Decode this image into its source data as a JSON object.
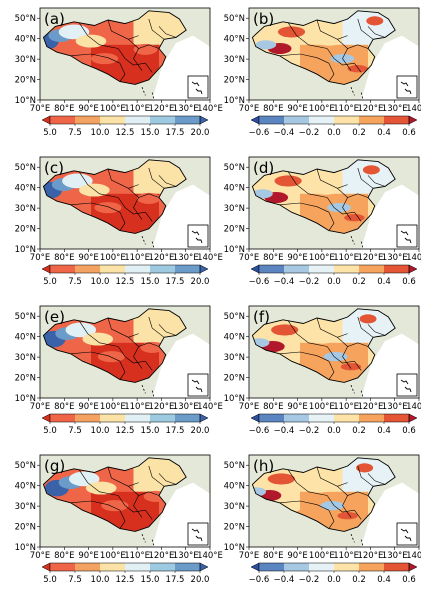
{
  "panels": [
    {
      "label": "(a)",
      "scale": "left"
    },
    {
      "label": "(b)",
      "scale": "right"
    },
    {
      "label": "(c)",
      "scale": "left"
    },
    {
      "label": "(d)",
      "scale": "right"
    },
    {
      "label": "(e)",
      "scale": "left"
    },
    {
      "label": "(f)",
      "scale": "right"
    },
    {
      "label": "(g)",
      "scale": "left"
    },
    {
      "label": "(h)",
      "scale": "right"
    }
  ],
  "axes": {
    "x_ticks": [
      "70°E",
      "80°E",
      "90°E",
      "100°E",
      "110°E",
      "120°E",
      "130°E",
      "140°E"
    ],
    "y_ticks": [
      "10°N",
      "20°N",
      "30°N",
      "40°N",
      "50°N"
    ]
  },
  "colorbars": {
    "left": {
      "ticks": [
        "5.0",
        "7.5",
        "10.0",
        "12.5",
        "15.0",
        "17.5",
        "20.0"
      ],
      "colors": [
        "#d7301f",
        "#ef6548",
        "#f4a261",
        "#fbe2a6",
        "#e0f0f4",
        "#9ecae1",
        "#6b9bc8",
        "#3a62a8"
      ]
    },
    "right": {
      "ticks": [
        "−0.6",
        "−0.4",
        "−0.2",
        "0.0",
        "0.2",
        "0.4",
        "0.6"
      ],
      "colors": [
        "#2c4f9e",
        "#5b85c1",
        "#a6c8e2",
        "#e6f2f6",
        "#fde3a8",
        "#f6a35d",
        "#e35535",
        "#b2182b"
      ]
    }
  },
  "colors": {
    "land_bg": "#e4e8d8",
    "ocean": "#ffffff",
    "border": "#000000"
  },
  "chart_data": [
    {
      "type": "heatmap",
      "panel": "(a)",
      "x_unit": "°E",
      "y_unit": "°N",
      "xlim": [
        70,
        140
      ],
      "ylim": [
        10,
        55
      ],
      "colorbar_range": [
        5.0,
        20.0
      ]
    },
    {
      "type": "heatmap",
      "panel": "(b)",
      "x_unit": "°E",
      "y_unit": "°N",
      "xlim": [
        70,
        140
      ],
      "ylim": [
        10,
        55
      ],
      "colorbar_range": [
        -0.6,
        0.6
      ]
    },
    {
      "type": "heatmap",
      "panel": "(c)",
      "x_unit": "°E",
      "y_unit": "°N",
      "xlim": [
        70,
        140
      ],
      "ylim": [
        10,
        55
      ],
      "colorbar_range": [
        5.0,
        20.0
      ]
    },
    {
      "type": "heatmap",
      "panel": "(d)",
      "x_unit": "°E",
      "y_unit": "°N",
      "xlim": [
        70,
        140
      ],
      "ylim": [
        10,
        55
      ],
      "colorbar_range": [
        -0.6,
        0.6
      ]
    },
    {
      "type": "heatmap",
      "panel": "(e)",
      "x_unit": "°E",
      "y_unit": "°N",
      "xlim": [
        70,
        140
      ],
      "ylim": [
        10,
        55
      ],
      "colorbar_range": [
        5.0,
        20.0
      ]
    },
    {
      "type": "heatmap",
      "panel": "(f)",
      "x_unit": "°E",
      "y_unit": "°N",
      "xlim": [
        70,
        140
      ],
      "ylim": [
        10,
        55
      ],
      "colorbar_range": [
        -0.6,
        0.6
      ]
    },
    {
      "type": "heatmap",
      "panel": "(g)",
      "x_unit": "°E",
      "y_unit": "°N",
      "xlim": [
        70,
        140
      ],
      "ylim": [
        10,
        55
      ],
      "colorbar_range": [
        5.0,
        20.0
      ]
    },
    {
      "type": "heatmap",
      "panel": "(h)",
      "x_unit": "°E",
      "y_unit": "°N",
      "xlim": [
        70,
        140
      ],
      "ylim": [
        10,
        55
      ],
      "colorbar_range": [
        -0.6,
        0.6
      ]
    }
  ]
}
